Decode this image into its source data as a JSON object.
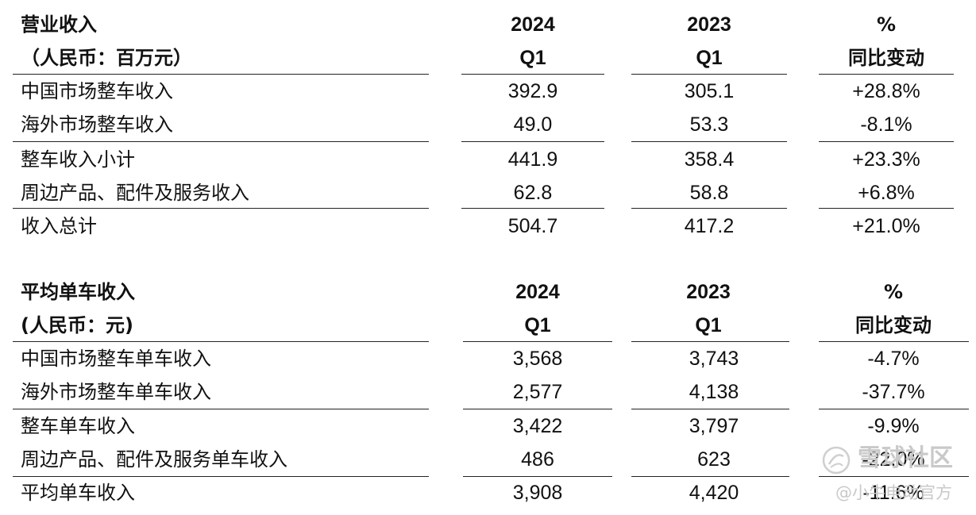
{
  "revenue_table": {
    "title": "营业收入",
    "unit": "（人民币：百万元）",
    "col_2024_year": "2024",
    "col_2024_q": "Q1",
    "col_2023_year": "2023",
    "col_2023_q": "Q1",
    "col_change_symbol": "%",
    "col_change_label": "同比变动",
    "rows": [
      {
        "label": "中国市场整车收入",
        "v2024": "392.9",
        "v2023": "305.1",
        "change": "+28.8%"
      },
      {
        "label": "海外市场整车收入",
        "v2024": "49.0",
        "v2023": "53.3",
        "change": "-8.1%"
      },
      {
        "label": "整车收入小计",
        "v2024": "441.9",
        "v2023": "358.4",
        "change": "+23.3%"
      },
      {
        "label": "周边产品、配件及服务收入",
        "v2024": "62.8",
        "v2023": "58.8",
        "change": "+6.8%"
      },
      {
        "label": "收入总计",
        "v2024": "504.7",
        "v2023": "417.2",
        "change": "+21.0%"
      }
    ]
  },
  "per_vehicle_table": {
    "title": "平均单车收入",
    "unit": "(人民币：元)",
    "col_2024_year": "2024",
    "col_2024_q": "Q1",
    "col_2023_year": "2023",
    "col_2023_q": "Q1",
    "col_change_symbol": "%",
    "col_change_label": "同比变动",
    "rows": [
      {
        "label": "中国市场整车单车收入",
        "v2024": "3,568",
        "v2023": "3,743",
        "change": "-4.7%"
      },
      {
        "label": "海外市场整车单车收入",
        "v2024": "2,577",
        "v2023": "4,138",
        "change": "-37.7%"
      },
      {
        "label": "整车单车收入",
        "v2024": "3,422",
        "v2023": "3,797",
        "change": "-9.9%"
      },
      {
        "label": "周边产品、配件及服务单车收入",
        "v2024": "486",
        "v2023": "623",
        "change": "-22.0%"
      },
      {
        "label": "平均单车收入",
        "v2024": "3,908",
        "v2023": "4,420",
        "change": "-11.6%"
      }
    ]
  },
  "watermark": {
    "line1": "雪球社区",
    "line2": "@小牛电动官方"
  }
}
